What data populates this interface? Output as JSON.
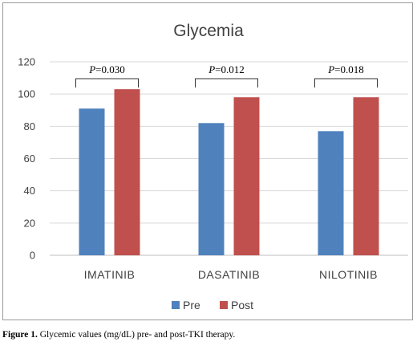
{
  "chart_data": {
    "type": "bar",
    "title": "Glycemia",
    "categories": [
      "IMATINIB",
      "DASATINIB",
      "NILOTINIB"
    ],
    "series": [
      {
        "name": "Pre",
        "values": [
          91,
          82,
          77
        ],
        "color": "#4f81bd"
      },
      {
        "name": "Post",
        "values": [
          103,
          98,
          98
        ],
        "color": "#c0504d"
      }
    ],
    "ylim": [
      0,
      120
    ],
    "yticks": [
      0,
      20,
      40,
      60,
      80,
      100,
      120
    ],
    "grid": true,
    "legend": "bottom",
    "annotations": [
      {
        "category": "IMATINIB",
        "p_label": "P",
        "p_value": "=0.030"
      },
      {
        "category": "DASATINIB",
        "p_label": "P",
        "p_value": "=0.012"
      },
      {
        "category": "NILOTINIB",
        "p_label": "P",
        "p_value": "=0.018"
      }
    ]
  },
  "caption": {
    "label": "Figure 1.",
    "text": " Glycemic values (mg/dL) pre- and post-TKI therapy."
  }
}
